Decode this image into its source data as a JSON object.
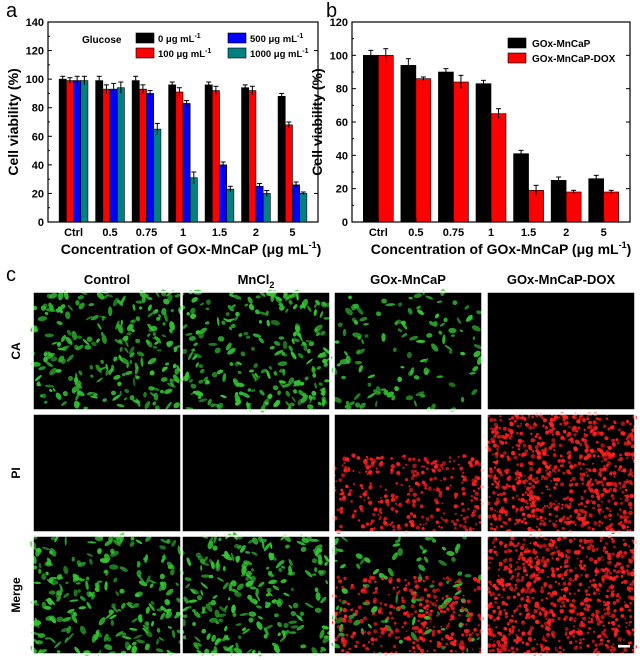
{
  "panel_labels": {
    "a": "a",
    "b": "b",
    "c": "c"
  },
  "chart_data": [
    {
      "type": "bar",
      "id": "a",
      "title": "",
      "xlabel": "Concentration of GOx-MnCaP (μg mL",
      "xlabel_sup": "-1",
      "xlabel_close": ")",
      "ylabel": "Cell viability (%)",
      "ylim": [
        0,
        140
      ],
      "yticks": [
        0,
        20,
        40,
        60,
        80,
        100,
        120,
        140
      ],
      "categories": [
        "Ctrl",
        "0.5",
        "0.75",
        "1",
        "1.5",
        "2",
        "5"
      ],
      "legend_title": "Glucose",
      "series": [
        {
          "name": "0 μg mL",
          "sup": "-1",
          "color": "#000000",
          "values": [
            100,
            99,
            99,
            96,
            96,
            94,
            88
          ],
          "errors": [
            2,
            3,
            3,
            2,
            2,
            2,
            2
          ]
        },
        {
          "name": "100 μg mL",
          "sup": "-1",
          "color": "#ff0000",
          "values": [
            99,
            93,
            93,
            91,
            92,
            92,
            68
          ],
          "errors": [
            2,
            3,
            3,
            3,
            3,
            3,
            2
          ]
        },
        {
          "name": "500 μg mL",
          "sup": "-1",
          "color": "#0000ff",
          "values": [
            99,
            93,
            90,
            83,
            40,
            25,
            26
          ],
          "errors": [
            3,
            4,
            2,
            2,
            2,
            2,
            2
          ]
        },
        {
          "name": "1000 μg mL",
          "sup": "-1",
          "color": "#008080",
          "values": [
            99,
            94,
            65,
            31,
            23,
            20,
            20
          ],
          "errors": [
            3,
            4,
            4,
            4,
            2,
            2,
            1
          ]
        }
      ]
    },
    {
      "type": "bar",
      "id": "b",
      "title": "",
      "xlabel": "Concentration of GOx-MnCaP (μg mL",
      "xlabel_sup": "-1",
      "xlabel_close": ")",
      "ylabel": "Cell viability (%)",
      "ylim": [
        0,
        120
      ],
      "yticks": [
        0,
        20,
        40,
        60,
        80,
        100,
        120
      ],
      "categories": [
        "Ctrl",
        "0.5",
        "0.75",
        "1",
        "1.5",
        "2",
        "5"
      ],
      "series": [
        {
          "name": "GOx-MnCaP",
          "color": "#000000",
          "values": [
            100,
            94,
            90,
            83,
            41,
            25,
            26
          ],
          "errors": [
            3,
            4,
            2,
            2,
            2,
            2,
            2
          ]
        },
        {
          "name": "GOx-MnCaP-DOX",
          "color": "#ff0000",
          "values": [
            100,
            86,
            84,
            65,
            19,
            18,
            18
          ],
          "errors": [
            4,
            1,
            4,
            3,
            3,
            1,
            1
          ]
        }
      ]
    }
  ],
  "micrographs": {
    "columns": [
      "Control",
      "MnCl",
      "GOx-MnCaP",
      "GOx-MnCaP-DOX"
    ],
    "mncl_subscript": "2",
    "rows": [
      "CA",
      "PI",
      "Merge"
    ],
    "green_color": "#34c434",
    "red_color": "#ff2020",
    "green_density": [
      [
        0.55,
        0.55,
        0.28,
        0.0
      ],
      [
        0.0,
        0.0,
        0.0,
        0.0
      ],
      [
        0.55,
        0.55,
        0.22,
        0.0
      ]
    ],
    "red_density": [
      [
        0.0,
        0.0,
        0.0,
        0.0
      ],
      [
        0.0,
        0.0,
        0.35,
        0.85
      ],
      [
        0.0,
        0.0,
        0.35,
        0.85
      ]
    ]
  }
}
